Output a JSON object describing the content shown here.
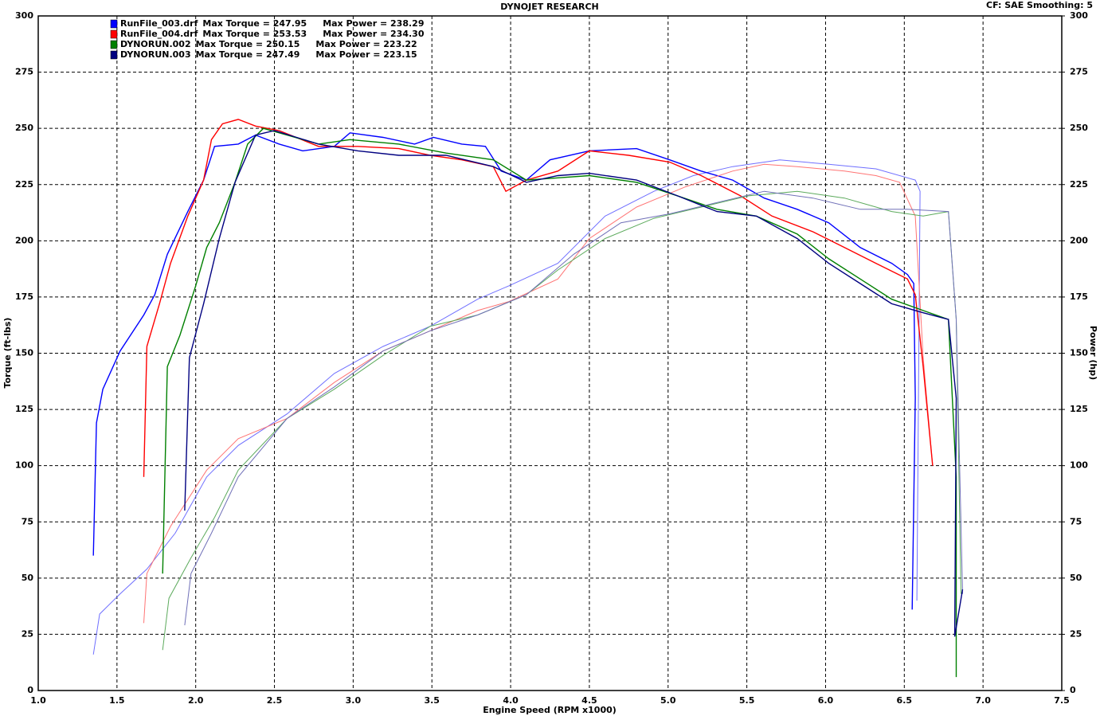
{
  "chart_data": {
    "type": "line",
    "title": "DYNOJET RESEARCH",
    "subtitle": "CF: SAE  Smoothing: 5",
    "x_label": "Engine Speed (RPM x1000)",
    "y_label": "Torque (ft-lbs)",
    "y2_label": "Power (hp)",
    "xlim": [
      1.0,
      7.5
    ],
    "xticks": [
      {
        "value": 1,
        "label": "1.0"
      },
      1.5,
      {
        "value": 2,
        "label": "2.0"
      },
      2.5,
      {
        "value": 3,
        "label": "3.0"
      },
      3.5,
      {
        "value": 4,
        "label": "4.0"
      },
      4.5,
      {
        "value": 5,
        "label": "5.0"
      },
      5.5,
      {
        "value": 6,
        "label": "6.0"
      },
      6.5,
      {
        "value": 7,
        "label": "7.0"
      },
      7.5
    ],
    "ylim": [
      0,
      300
    ],
    "yticks": [
      0,
      25,
      50,
      75,
      100,
      125,
      150,
      175,
      200,
      225,
      250,
      275,
      300
    ],
    "y2lim": [
      0,
      300
    ],
    "y2ticks": [
      0,
      25,
      50,
      75,
      100,
      125,
      150,
      175,
      200,
      225,
      250,
      275,
      300
    ],
    "grid": true,
    "series": [
      {
        "name": "RunFile_003.drf",
        "torque_label": "Max Torque = 247.95",
        "power_label": "Max Power = 238.29",
        "color": "#0000ff",
        "power_color": "#6f6fff",
        "torque": {
          "x": [
            1.35,
            1.37,
            1.41,
            1.52,
            1.67,
            1.74,
            1.82,
            1.95,
            2.05,
            2.12,
            2.27,
            2.38,
            2.53,
            2.68,
            2.88,
            2.98,
            3.19,
            3.39,
            3.51,
            3.69,
            3.84,
            3.94,
            4.1,
            4.25,
            4.5,
            4.8,
            5.01,
            5.21,
            5.41,
            5.61,
            5.82,
            6.02,
            6.22,
            6.42,
            6.52,
            6.56,
            6.57,
            6.55
          ],
          "values": [
            60,
            119,
            134,
            151,
            167,
            176,
            194,
            213,
            227,
            242,
            243,
            247,
            243,
            240,
            242,
            248,
            246,
            243,
            246,
            243,
            242,
            231,
            227,
            236,
            240,
            241,
            236,
            231,
            227,
            219,
            214,
            208,
            197,
            190,
            185,
            181,
            130,
            36
          ]
        },
        "power": {
          "x": [
            1.35,
            1.39,
            1.52,
            1.69,
            1.87,
            2.07,
            2.27,
            2.58,
            2.88,
            3.19,
            3.49,
            3.79,
            3.99,
            4.3,
            4.6,
            4.91,
            5.16,
            5.41,
            5.71,
            6.02,
            6.32,
            6.57,
            6.6,
            6.58
          ],
          "values": [
            16,
            34,
            43,
            54,
            70,
            95,
            109,
            123,
            141,
            153,
            162,
            174,
            180,
            190,
            211,
            222,
            229,
            233,
            236,
            234,
            232,
            227,
            222,
            40
          ],
          "axis": "y2"
        }
      },
      {
        "name": "RunFile_004.drf",
        "torque_label": "Max Torque = 253.53",
        "power_label": "Max Power = 234.30",
        "color": "#ff0000",
        "power_color": "#ff7474",
        "torque": {
          "x": [
            1.67,
            1.69,
            1.77,
            1.84,
            1.95,
            2.05,
            2.1,
            2.17,
            2.27,
            2.38,
            2.53,
            2.78,
            3.03,
            3.29,
            3.49,
            3.69,
            3.89,
            3.97,
            4.1,
            4.3,
            4.5,
            4.75,
            5.01,
            5.21,
            5.46,
            5.66,
            5.92,
            6.12,
            6.32,
            6.52,
            6.57,
            6.62,
            6.68
          ],
          "values": [
            95,
            153,
            172,
            190,
            211,
            227,
            245,
            252,
            254,
            251,
            249,
            242,
            242,
            241,
            238,
            236,
            233,
            222,
            227,
            231,
            240,
            238,
            235,
            229,
            220,
            211,
            204,
            197,
            190,
            183,
            176,
            144,
            100
          ]
        },
        "power": {
          "x": [
            1.67,
            1.69,
            1.84,
            2.07,
            2.27,
            2.58,
            2.88,
            3.19,
            3.49,
            3.79,
            3.99,
            4.3,
            4.5,
            4.8,
            5.11,
            5.41,
            5.61,
            5.82,
            6.12,
            6.32,
            6.47,
            6.57,
            6.62,
            6.68
          ],
          "values": [
            30,
            52,
            73,
            98,
            112,
            121,
            137,
            151,
            160,
            169,
            173,
            183,
            201,
            215,
            224,
            231,
            234,
            233,
            231,
            229,
            226,
            211,
            148,
            100
          ],
          "axis": "y2"
        }
      },
      {
        "name": "DYNORUN.002",
        "torque_label": "Max Torque = 250.15",
        "power_label": "Max Power = 223.22",
        "color": "#008000",
        "power_color": "#5caa5c",
        "torque": {
          "x": [
            1.79,
            1.82,
            1.9,
            2.0,
            2.07,
            2.15,
            2.25,
            2.33,
            2.43,
            2.58,
            2.78,
            2.98,
            3.29,
            3.59,
            3.89,
            4.1,
            4.3,
            4.5,
            4.8,
            5.06,
            5.31,
            5.56,
            5.82,
            6.02,
            6.22,
            6.42,
            6.62,
            6.78,
            6.83,
            6.83
          ],
          "values": [
            52,
            144,
            158,
            180,
            197,
            208,
            226,
            243,
            250,
            247,
            243,
            245,
            243,
            239,
            236,
            227,
            228,
            229,
            226,
            220,
            214,
            211,
            203,
            192,
            183,
            174,
            169,
            165,
            95,
            6
          ]
        },
        "power": {
          "x": [
            1.79,
            1.83,
            1.97,
            2.12,
            2.27,
            2.58,
            2.88,
            3.19,
            3.49,
            3.79,
            4.1,
            4.3,
            4.6,
            4.91,
            5.21,
            5.51,
            5.82,
            6.12,
            6.42,
            6.62,
            6.78,
            6.83,
            6.86
          ],
          "values": [
            18,
            41,
            59,
            77,
            98,
            121,
            134,
            149,
            162,
            167,
            176,
            187,
            201,
            210,
            215,
            220,
            222,
            219,
            213,
            211,
            213,
            165,
            43
          ],
          "axis": "y2"
        }
      },
      {
        "name": "DYNORUN.003",
        "torque_label": "Max Torque = 247.49",
        "power_label": "Max Power = 223.15",
        "color": "#000080",
        "power_color": "#7070b8",
        "torque": {
          "x": [
            1.93,
            1.96,
            2.05,
            2.15,
            2.25,
            2.38,
            2.5,
            2.78,
            3.03,
            3.29,
            3.59,
            3.89,
            4.1,
            4.3,
            4.5,
            4.8,
            5.06,
            5.31,
            5.56,
            5.82,
            6.02,
            6.22,
            6.42,
            6.62,
            6.78,
            6.83,
            6.82,
            6.87
          ],
          "values": [
            80,
            148,
            172,
            201,
            226,
            247,
            249,
            243,
            240,
            238,
            238,
            233,
            226,
            229,
            230,
            227,
            220,
            213,
            211,
            201,
            190,
            181,
            172,
            168,
            165,
            130,
            24,
            45
          ]
        },
        "power": {
          "x": [
            1.93,
            1.97,
            2.1,
            2.27,
            2.58,
            2.88,
            3.19,
            3.49,
            3.79,
            4.1,
            4.4,
            4.7,
            5.01,
            5.31,
            5.61,
            5.92,
            6.22,
            6.52,
            6.78,
            6.83,
            6.87
          ],
          "values": [
            29,
            52,
            70,
            95,
            121,
            135,
            151,
            160,
            167,
            176,
            194,
            208,
            212,
            217,
            222,
            219,
            214,
            214,
            213,
            165,
            43
          ],
          "axis": "y2"
        }
      }
    ]
  }
}
